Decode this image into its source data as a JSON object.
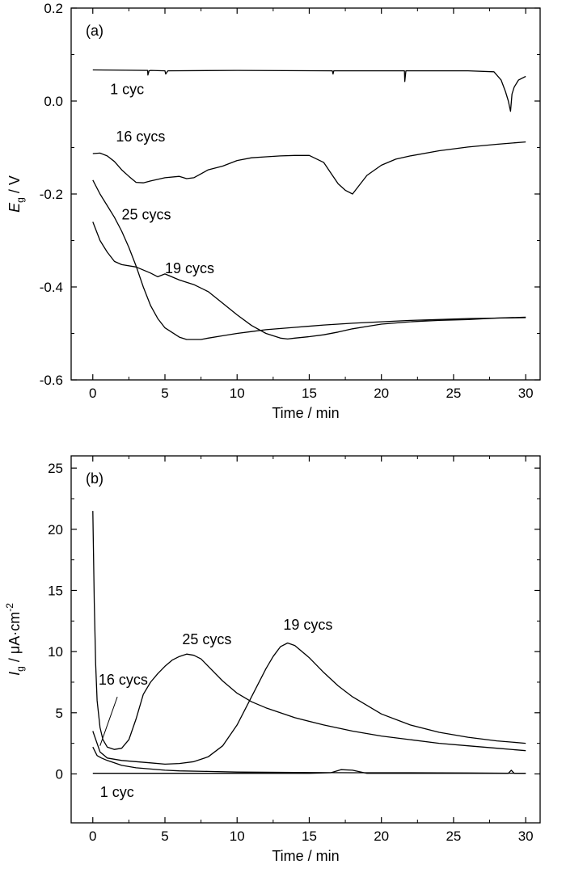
{
  "chart_data": [
    {
      "type": "line",
      "panel_label": "(a)",
      "xlabel": "Time / min",
      "ylabel_main": "E",
      "ylabel_sub": "g",
      "ylabel_rest": " / V",
      "xlim": [
        -1.5,
        31
      ],
      "ylim": [
        -0.6,
        0.2
      ],
      "x_ticks": [
        0,
        5,
        10,
        15,
        20,
        25,
        30
      ],
      "y_ticks": [
        -0.6,
        -0.4,
        -0.2,
        0.0,
        0.2
      ],
      "y_tick_labels": [
        "-0.6",
        "-0.4",
        "-0.2",
        "0.0",
        "0.2"
      ],
      "grid": false,
      "series": [
        {
          "name": "1 cyc",
          "x": [
            0,
            3.8,
            3.82,
            3.9,
            4,
            5,
            5.05,
            5.2,
            10,
            16.6,
            16.65,
            16.7,
            21.6,
            21.62,
            21.7,
            26,
            27.8,
            28.3,
            28.6,
            28.8,
            28.95,
            29.05,
            29.2,
            29.5,
            30
          ],
          "y": [
            0.067,
            0.066,
            0.056,
            0.065,
            0.066,
            0.065,
            0.058,
            0.065,
            0.066,
            0.065,
            0.058,
            0.065,
            0.065,
            0.042,
            0.065,
            0.065,
            0.063,
            0.045,
            0.02,
            0.0,
            -0.022,
            0.015,
            0.03,
            0.045,
            0.053
          ]
        },
        {
          "name": "16 cycs",
          "x": [
            0,
            0.5,
            1,
            1.5,
            2,
            2.5,
            3,
            3.5,
            4,
            5,
            6,
            6.5,
            7,
            8,
            9,
            10,
            11,
            12,
            13,
            14,
            15,
            16,
            16.5,
            17,
            17.5,
            18,
            18.5,
            19,
            20,
            21,
            22,
            24,
            26,
            28,
            30
          ],
          "y": [
            -0.113,
            -0.112,
            -0.118,
            -0.13,
            -0.148,
            -0.162,
            -0.175,
            -0.176,
            -0.172,
            -0.165,
            -0.162,
            -0.167,
            -0.165,
            -0.148,
            -0.14,
            -0.128,
            -0.122,
            -0.12,
            -0.118,
            -0.117,
            -0.117,
            -0.132,
            -0.155,
            -0.178,
            -0.192,
            -0.2,
            -0.18,
            -0.16,
            -0.138,
            -0.125,
            -0.118,
            -0.107,
            -0.099,
            -0.093,
            -0.088
          ]
        },
        {
          "name": "25 cycs",
          "x": [
            0,
            0.5,
            1,
            1.5,
            2,
            2.5,
            3,
            3.5,
            4,
            4.5,
            5,
            6,
            6.5,
            7,
            7.5,
            8,
            9,
            10,
            11,
            12,
            14,
            16,
            18,
            20,
            22,
            24,
            26,
            28,
            30
          ],
          "y": [
            -0.17,
            -0.2,
            -0.225,
            -0.25,
            -0.28,
            -0.315,
            -0.355,
            -0.4,
            -0.44,
            -0.468,
            -0.488,
            -0.508,
            -0.513,
            -0.513,
            -0.513,
            -0.51,
            -0.505,
            -0.5,
            -0.496,
            -0.492,
            -0.487,
            -0.482,
            -0.478,
            -0.475,
            -0.472,
            -0.47,
            -0.468,
            -0.467,
            -0.466
          ]
        },
        {
          "name": "19 cycs",
          "x": [
            0,
            0.5,
            1,
            1.5,
            2,
            3,
            4,
            4.5,
            5,
            6,
            7,
            8,
            9,
            10,
            11,
            12,
            13,
            13.5,
            14,
            15,
            16,
            17,
            18,
            19,
            20,
            22,
            24,
            26,
            28,
            30
          ],
          "y": [
            -0.26,
            -0.3,
            -0.325,
            -0.345,
            -0.352,
            -0.357,
            -0.37,
            -0.378,
            -0.372,
            -0.385,
            -0.395,
            -0.41,
            -0.435,
            -0.46,
            -0.483,
            -0.5,
            -0.51,
            -0.512,
            -0.51,
            -0.507,
            -0.503,
            -0.497,
            -0.49,
            -0.485,
            -0.48,
            -0.475,
            -0.472,
            -0.47,
            -0.467,
            -0.465
          ]
        }
      ],
      "annotations": [
        {
          "text": "1 cyc",
          "x": 1.2,
          "y": 0.015
        },
        {
          "text": "16 cycs",
          "x": 1.6,
          "y": -0.087
        },
        {
          "text": "25 cycs",
          "x": 2.0,
          "y": -0.255
        },
        {
          "text": "19 cycs",
          "x": 5.0,
          "y": -0.37
        }
      ]
    },
    {
      "type": "line",
      "panel_label": "(b)",
      "xlabel": "Time / min",
      "ylabel_main": "I",
      "ylabel_sub": "g",
      "ylabel_rest": " / μA·cm",
      "ylabel_sup": "-2",
      "xlim": [
        -1.5,
        31
      ],
      "ylim": [
        -4,
        26
      ],
      "x_ticks": [
        0,
        5,
        10,
        15,
        20,
        25,
        30
      ],
      "y_ticks": [
        0,
        5,
        10,
        15,
        20,
        25
      ],
      "y_tick_labels": [
        "0",
        "5",
        "10",
        "15",
        "20",
        "25"
      ],
      "grid": false,
      "series": [
        {
          "name": "25 cycs",
          "x": [
            0,
            0.1,
            0.2,
            0.3,
            0.5,
            0.7,
            1,
            1.5,
            2,
            2.5,
            3,
            3.5,
            4,
            4.5,
            5,
            5.5,
            6,
            6.5,
            7,
            7.5,
            8,
            9,
            10,
            11,
            12,
            14,
            16,
            18,
            20,
            22,
            24,
            26,
            28,
            30
          ],
          "y": [
            21.5,
            14,
            9,
            6,
            3.8,
            2.8,
            2.2,
            2.0,
            2.1,
            2.8,
            4.5,
            6.5,
            7.5,
            8.2,
            8.8,
            9.3,
            9.6,
            9.8,
            9.7,
            9.4,
            8.8,
            7.6,
            6.6,
            5.9,
            5.4,
            4.6,
            4.0,
            3.5,
            3.1,
            2.8,
            2.5,
            2.3,
            2.1,
            1.9
          ]
        },
        {
          "name": "19 cycs",
          "x": [
            0,
            0.5,
            1,
            2,
            3,
            4,
            5,
            6,
            7,
            8,
            9,
            10,
            11,
            12,
            12.5,
            13,
            13.5,
            14,
            15,
            16,
            17,
            18,
            20,
            22,
            24,
            26,
            28,
            30
          ],
          "y": [
            3.5,
            1.8,
            1.3,
            1.1,
            1.0,
            0.9,
            0.8,
            0.85,
            1.0,
            1.4,
            2.3,
            4.0,
            6.3,
            8.6,
            9.6,
            10.4,
            10.7,
            10.5,
            9.5,
            8.3,
            7.2,
            6.3,
            4.9,
            4.0,
            3.4,
            3.0,
            2.7,
            2.5
          ]
        },
        {
          "name": "16 cycs",
          "x": [
            0,
            0.3,
            0.6,
            1,
            1.5,
            2,
            3,
            4,
            5,
            6,
            8,
            10,
            14,
            18,
            22,
            26,
            30
          ],
          "y": [
            2.2,
            1.5,
            1.3,
            1.1,
            0.9,
            0.7,
            0.5,
            0.4,
            0.3,
            0.25,
            0.2,
            0.15,
            0.12,
            0.1,
            0.1,
            0.08,
            0.05
          ]
        },
        {
          "name": "1 cyc",
          "x": [
            0,
            5,
            10,
            15,
            16.5,
            17.2,
            18,
            19,
            25,
            28.8,
            29.0,
            29.2,
            30
          ],
          "y": [
            0.05,
            0.05,
            0.05,
            0.05,
            0.1,
            0.35,
            0.3,
            0.05,
            0.05,
            0.05,
            0.3,
            0.05,
            0.05
          ]
        }
      ],
      "annotations": [
        {
          "text": "25 cycs",
          "x": 6.2,
          "y": 10.6
        },
        {
          "text": "19 cycs",
          "x": 13.2,
          "y": 11.8
        },
        {
          "text": "16 cycs",
          "x": 0.4,
          "y": 7.3
        },
        {
          "text": "1 cyc",
          "x": 0.5,
          "y": -1.9
        }
      ]
    }
  ]
}
